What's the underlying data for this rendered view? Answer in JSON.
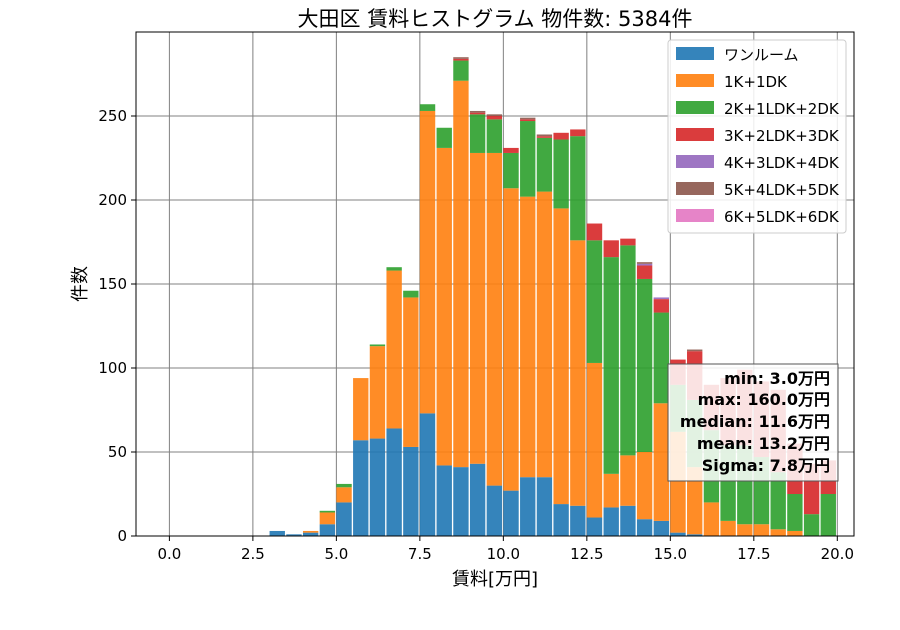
{
  "chart_data": {
    "type": "bar",
    "stacked": true,
    "title": "大田区 賃料ヒストグラム  物件数: 5384件",
    "xlabel": "賃料[万円]",
    "ylabel": "件数",
    "xlim": [
      -1.0,
      20.5
    ],
    "ylim": [
      0,
      300
    ],
    "xticks": [
      "0.0",
      "2.5",
      "5.0",
      "7.5",
      "10.0",
      "12.5",
      "15.0",
      "17.5",
      "20.0"
    ],
    "xtick_values": [
      0,
      2.5,
      5,
      7.5,
      10,
      12.5,
      15,
      17.5,
      20
    ],
    "yticks": [
      "0",
      "50",
      "100",
      "150",
      "200",
      "250"
    ],
    "ytick_values": [
      0,
      50,
      100,
      150,
      200,
      250
    ],
    "grid": true,
    "legend_position": "top-right",
    "bin_width": 0.5,
    "bin_starts": [
      0,
      0.5,
      1,
      1.5,
      2,
      2.5,
      3,
      3.5,
      4,
      4.5,
      5,
      5.5,
      6,
      6.5,
      7,
      7.5,
      8,
      8.5,
      9,
      9.5,
      10,
      10.5,
      11,
      11.5,
      12,
      12.5,
      13,
      13.5,
      14,
      14.5,
      15,
      15.5,
      16,
      16.5,
      17,
      17.5,
      18,
      18.5,
      19,
      19.5
    ],
    "series": [
      {
        "name": "ワンルーム",
        "color": "#1f77b4",
        "values": [
          0,
          0,
          0,
          0,
          0,
          0,
          3,
          1,
          2,
          7,
          20,
          57,
          58,
          64,
          53,
          73,
          42,
          41,
          43,
          30,
          27,
          35,
          35,
          19,
          18,
          11,
          17,
          18,
          10,
          9,
          2,
          1,
          0,
          0,
          0,
          0,
          0,
          0,
          0,
          0
        ]
      },
      {
        "name": "1K+1DK",
        "color": "#ff7f0e",
        "values": [
          0,
          0,
          0,
          0,
          0,
          0,
          0,
          0,
          1,
          7,
          9,
          37,
          55,
          94,
          89,
          180,
          189,
          230,
          185,
          198,
          180,
          167,
          170,
          176,
          158,
          92,
          20,
          30,
          40,
          70,
          60,
          40,
          20,
          9,
          7,
          7,
          4,
          3,
          0,
          0
        ]
      },
      {
        "name": "2K+1LDK+2DK",
        "color": "#2ca02c",
        "values": [
          0,
          0,
          0,
          0,
          0,
          0,
          0,
          0,
          0,
          1,
          2,
          0,
          1,
          2,
          4,
          4,
          12,
          12,
          23,
          20,
          21,
          45,
          32,
          41,
          62,
          73,
          129,
          125,
          103,
          54,
          28,
          40,
          43,
          45,
          47,
          40,
          34,
          22,
          13,
          25
        ]
      },
      {
        "name": "3K+2LDK+3DK",
        "color": "#d62728",
        "values": [
          0,
          0,
          0,
          0,
          0,
          0,
          0,
          0,
          0,
          0,
          0,
          0,
          0,
          0,
          0,
          0,
          0,
          1,
          1,
          2,
          3,
          1,
          1,
          4,
          4,
          10,
          10,
          4,
          8,
          8,
          15,
          29,
          27,
          40,
          45,
          45,
          49,
          30,
          30,
          20
        ]
      },
      {
        "name": "4K+3LDK+4DK",
        "color": "#9467bd",
        "values": [
          0,
          0,
          0,
          0,
          0,
          0,
          0,
          0,
          0,
          0,
          0,
          0,
          0,
          0,
          0,
          0,
          0,
          0,
          0,
          0,
          0,
          0,
          0,
          0,
          0,
          0,
          0,
          0,
          1,
          1,
          0,
          0,
          0,
          0,
          0,
          0,
          0,
          0,
          0,
          0
        ]
      },
      {
        "name": "5K+4LDK+5DK",
        "color": "#8c564b",
        "values": [
          0,
          0,
          0,
          0,
          0,
          0,
          0,
          0,
          0,
          0,
          0,
          0,
          0,
          0,
          0,
          0,
          0,
          1,
          1,
          1,
          0,
          1,
          1,
          0,
          0,
          0,
          0,
          0,
          1,
          0,
          0,
          1,
          0,
          0,
          0,
          0,
          0,
          0,
          0,
          0
        ]
      },
      {
        "name": "6K+5LDK+6DK",
        "color": "#e377c2",
        "values": [
          0,
          0,
          0,
          0,
          0,
          0,
          0,
          0,
          0,
          0,
          0,
          0,
          0,
          0,
          0,
          0,
          0,
          0,
          0,
          0,
          0,
          0,
          0,
          0,
          0,
          0,
          0,
          0,
          0,
          0,
          0,
          0,
          0,
          0,
          0,
          0,
          0,
          0,
          0,
          0
        ]
      }
    ],
    "stats": {
      "min": "min: 3.0万円",
      "max": "max: 160.0万円",
      "median": "median: 11.6万円",
      "mean": "mean: 13.2万円",
      "sigma": "Sigma: 7.8万円"
    }
  }
}
